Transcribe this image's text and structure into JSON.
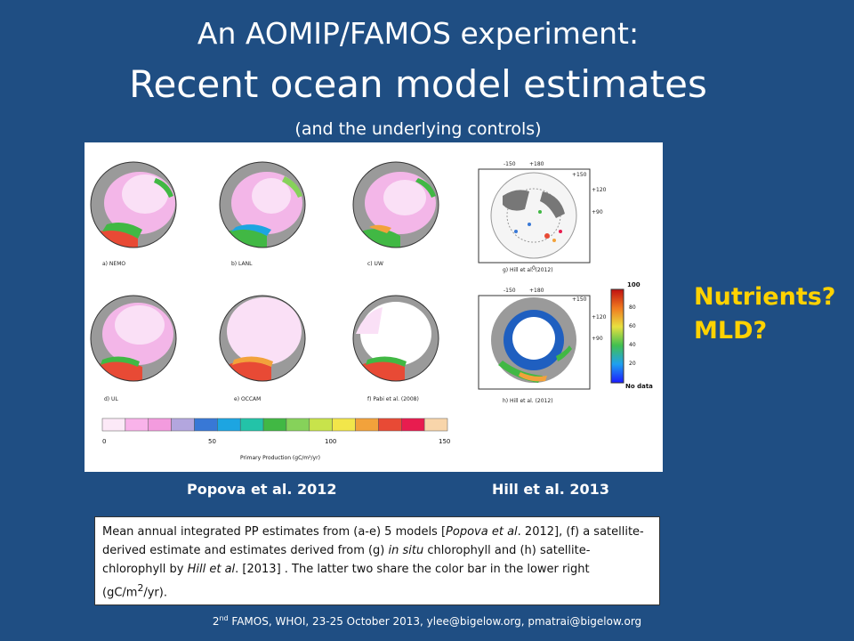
{
  "title": {
    "line1": "An AOMIP/FAMOS experiment:",
    "line2": "Recent ocean model estimates",
    "line3": "(and the underlying controls)"
  },
  "figure": {
    "panels": [
      {
        "label": "a) NEMO"
      },
      {
        "label": "b) LANL"
      },
      {
        "label": "c) UW"
      },
      {
        "label": "d) UL"
      },
      {
        "label": "e) OCCAM"
      },
      {
        "label": "f) Pabi et al. (2008)"
      },
      {
        "label": "g) Hill et al. (2012)"
      },
      {
        "label": "h) Hill et al. (2012)"
      }
    ],
    "hill_coords": {
      "top": "+180",
      "left": "-150",
      "mid_left": "-120",
      "right1": "+150",
      "right2": "+120",
      "right3": "+90",
      "bottom": "0",
      "bl": "-30",
      "br": "+30"
    },
    "colorbar_h": {
      "ticks": [
        "0",
        "50",
        "100",
        "150"
      ],
      "label": "Primary Production (gC/m²/yr)"
    },
    "colorbar_v": {
      "ticks": [
        "100",
        "80",
        "60",
        "40",
        "20"
      ],
      "no_data": "No data"
    }
  },
  "captions": {
    "left": "Popova et al. 2012",
    "right": "Hill et al. 2013"
  },
  "side_text": {
    "line1": "Nutrients?",
    "line2": "MLD?"
  },
  "description": {
    "p1": "Mean annual integrated PP estimates from (a-e) 5 models [",
    "p1_ital": "Popova et al",
    "p2": ". 2012], (f) a satellite-derived estimate  and estimates derived from (g) ",
    "p2_ital": "in situ",
    "p3": " chlorophyll and (h) satellite-chlorophyll by ",
    "p3_ital": "Hill et al",
    "p4": ". [2013] . The latter two share the color bar in the lower right (gC/m",
    "p4_sup": "2",
    "p5": "/yr)."
  },
  "footer": {
    "pre": "2",
    "sup": "nd",
    "post": " FAMOS, WHOI, 23-25 October 2013, ylee@bigelow.org, pmatrai@bigelow.org"
  },
  "colors": {
    "background": "#1f4e83",
    "accent": "#ffd200",
    "colorbar": [
      "#fce9f7",
      "#f9b3ea",
      "#f39bde",
      "#b3a6de",
      "#3878d6",
      "#1da5e1",
      "#23c3a8",
      "#41b844",
      "#86d25a",
      "#c8e34b",
      "#f2e64a",
      "#f2a23b",
      "#e84a35",
      "#e81c4f",
      "#f8d5aa"
    ]
  }
}
